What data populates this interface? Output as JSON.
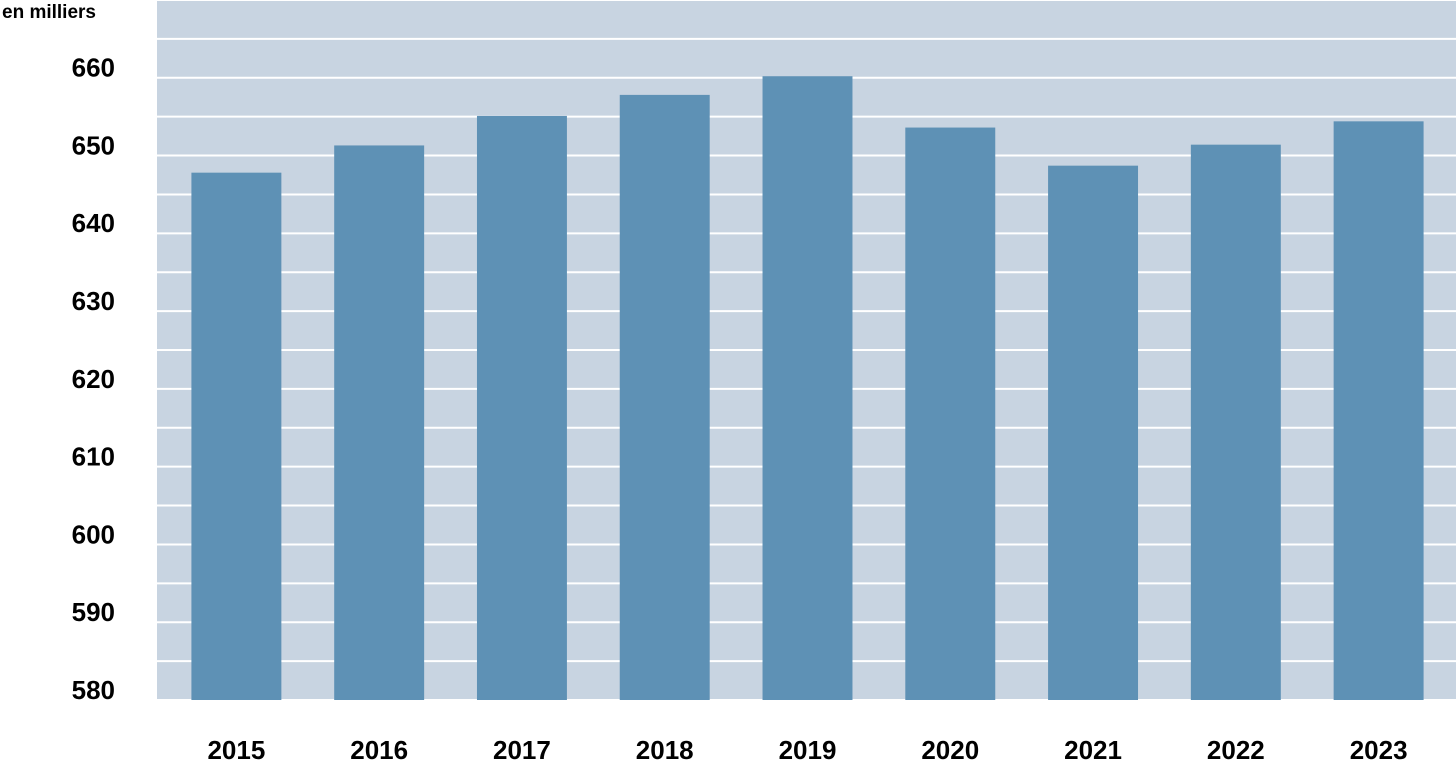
{
  "chart_data": {
    "type": "bar",
    "y_label": "en milliers",
    "categories": [
      "2015",
      "2016",
      "2017",
      "2018",
      "2019",
      "2020",
      "2021",
      "2022",
      "2023"
    ],
    "values": [
      647.8,
      651.3,
      655.1,
      657.8,
      660.2,
      653.6,
      648.7,
      651.4,
      654.4
    ],
    "color": "#5e91b5",
    "background": "#c8d4e1",
    "ylim": [
      580,
      670
    ],
    "yticks": [
      580,
      590,
      600,
      610,
      620,
      630,
      640,
      650,
      660
    ],
    "minor_yticks": [
      585,
      595,
      605,
      615,
      625,
      635,
      645,
      655,
      665,
      670
    ],
    "grid": true
  }
}
